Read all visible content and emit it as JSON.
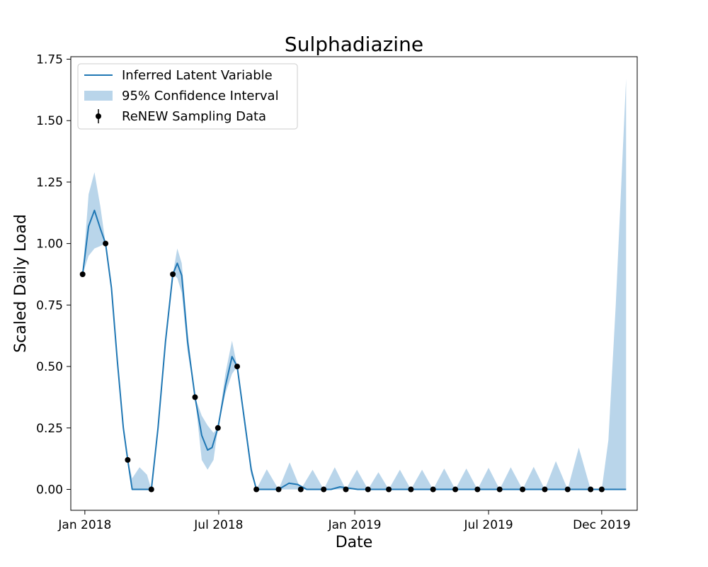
{
  "chart_data": {
    "type": "line",
    "title": "Sulphadiazine",
    "xlabel": "Date",
    "ylabel": "Scaled Daily Load",
    "xlim": [
      "2017-12-13",
      "2020-01-18"
    ],
    "ylim": [
      -0.085,
      1.76
    ],
    "xticks": [
      {
        "date": "2018-01-01",
        "label": "Jan 2018"
      },
      {
        "date": "2018-07-01",
        "label": "Jul 2018"
      },
      {
        "date": "2019-01-01",
        "label": "Jan 2019"
      },
      {
        "date": "2019-07-01",
        "label": "Jul 2019"
      },
      {
        "date": "2019-12-01",
        "label": "Dec 2019"
      }
    ],
    "yticks": [
      {
        "value": 0.0,
        "label": "0.00"
      },
      {
        "value": 0.25,
        "label": "0.25"
      },
      {
        "value": 0.5,
        "label": "0.50"
      },
      {
        "value": 0.75,
        "label": "0.75"
      },
      {
        "value": 1.0,
        "label": "1.00"
      },
      {
        "value": 1.25,
        "label": "1.25"
      },
      {
        "value": 1.5,
        "label": "1.50"
      },
      {
        "value": 1.75,
        "label": "1.75"
      }
    ],
    "grid": false,
    "legend_position": "top-left",
    "colors": {
      "latent": "#1f77b4",
      "ci": "#b9d5ea",
      "data": "#000000"
    },
    "legend": [
      {
        "label": "Inferred Latent Variable",
        "kind": "line"
      },
      {
        "label": "95% Confidence Interval",
        "kind": "band"
      },
      {
        "label": "ReNEW Sampling Data",
        "kind": "errorbar-point"
      }
    ],
    "series": [
      {
        "name": "Inferred Latent Variable",
        "type": "line",
        "points": [
          [
            "2017-12-29",
            0.875
          ],
          [
            "2018-01-06",
            1.07
          ],
          [
            "2018-01-14",
            1.135
          ],
          [
            "2018-01-22",
            1.06
          ],
          [
            "2018-01-29",
            1.0
          ],
          [
            "2018-02-06",
            0.82
          ],
          [
            "2018-02-14",
            0.52
          ],
          [
            "2018-02-22",
            0.25
          ],
          [
            "2018-02-28",
            0.12
          ],
          [
            "2018-03-06",
            0.0
          ],
          [
            "2018-03-16",
            0.0
          ],
          [
            "2018-04-01",
            0.0
          ],
          [
            "2018-04-10",
            0.25
          ],
          [
            "2018-04-20",
            0.6
          ],
          [
            "2018-04-30",
            0.875
          ],
          [
            "2018-05-06",
            0.92
          ],
          [
            "2018-05-12",
            0.87
          ],
          [
            "2018-05-20",
            0.6
          ],
          [
            "2018-05-30",
            0.375
          ],
          [
            "2018-06-08",
            0.22
          ],
          [
            "2018-06-16",
            0.16
          ],
          [
            "2018-06-22",
            0.17
          ],
          [
            "2018-06-30",
            0.25
          ],
          [
            "2018-07-10",
            0.42
          ],
          [
            "2018-07-19",
            0.54
          ],
          [
            "2018-07-26",
            0.5
          ],
          [
            "2018-08-04",
            0.3
          ],
          [
            "2018-08-14",
            0.08
          ],
          [
            "2018-08-21",
            0.0
          ],
          [
            "2018-09-20",
            0.0
          ],
          [
            "2018-10-04",
            0.025
          ],
          [
            "2018-10-16",
            0.02
          ],
          [
            "2018-10-28",
            0.0
          ],
          [
            "2018-11-30",
            0.0
          ],
          [
            "2018-12-12",
            0.01
          ],
          [
            "2018-12-24",
            0.005
          ],
          [
            "2019-01-05",
            0.0
          ],
          [
            "2020-01-03",
            0.0
          ]
        ]
      },
      {
        "name": "95% Confidence Interval",
        "type": "area",
        "points": [
          [
            "2017-12-29",
            0.875,
            0.875
          ],
          [
            "2018-01-06",
            0.95,
            1.2
          ],
          [
            "2018-01-14",
            0.98,
            1.29
          ],
          [
            "2018-01-22",
            0.99,
            1.15
          ],
          [
            "2018-01-29",
            1.0,
            1.0
          ],
          [
            "2018-02-06",
            0.8,
            0.84
          ],
          [
            "2018-02-14",
            0.5,
            0.54
          ],
          [
            "2018-02-22",
            0.23,
            0.27
          ],
          [
            "2018-02-28",
            0.12,
            0.12
          ],
          [
            "2018-03-06",
            0.0,
            0.045
          ],
          [
            "2018-03-16",
            0.0,
            0.09
          ],
          [
            "2018-03-26",
            0.0,
            0.06
          ],
          [
            "2018-04-01",
            0.0,
            0.0
          ],
          [
            "2018-04-10",
            0.24,
            0.27
          ],
          [
            "2018-04-20",
            0.58,
            0.62
          ],
          [
            "2018-04-30",
            0.875,
            0.875
          ],
          [
            "2018-05-06",
            0.86,
            0.98
          ],
          [
            "2018-05-12",
            0.8,
            0.92
          ],
          [
            "2018-05-20",
            0.56,
            0.64
          ],
          [
            "2018-05-30",
            0.375,
            0.375
          ],
          [
            "2018-06-08",
            0.12,
            0.3
          ],
          [
            "2018-06-16",
            0.08,
            0.26
          ],
          [
            "2018-06-24",
            0.12,
            0.23
          ],
          [
            "2018-06-30",
            0.25,
            0.25
          ],
          [
            "2018-07-10",
            0.39,
            0.47
          ],
          [
            "2018-07-19",
            0.47,
            0.605
          ],
          [
            "2018-07-26",
            0.5,
            0.5
          ],
          [
            "2018-08-04",
            0.28,
            0.32
          ],
          [
            "2018-08-14",
            0.06,
            0.1
          ],
          [
            "2018-08-21",
            0.0,
            0.0
          ],
          [
            "2018-09-04",
            0.0,
            0.082
          ],
          [
            "2018-09-20",
            0.0,
            0.0
          ],
          [
            "2018-10-05",
            0.0,
            0.11
          ],
          [
            "2018-10-20",
            0.0,
            0.0
          ],
          [
            "2018-11-05",
            0.0,
            0.08
          ],
          [
            "2018-11-20",
            0.0,
            0.0
          ],
          [
            "2018-12-05",
            0.0,
            0.09
          ],
          [
            "2018-12-20",
            0.0,
            0.0
          ],
          [
            "2019-01-04",
            0.0,
            0.08
          ],
          [
            "2019-01-19",
            0.0,
            0.0
          ],
          [
            "2019-02-02",
            0.0,
            0.07
          ],
          [
            "2019-02-16",
            0.0,
            0.0
          ],
          [
            "2019-03-03",
            0.0,
            0.08
          ],
          [
            "2019-03-18",
            0.0,
            0.0
          ],
          [
            "2019-04-02",
            0.0,
            0.08
          ],
          [
            "2019-04-17",
            0.0,
            0.0
          ],
          [
            "2019-05-02",
            0.0,
            0.085
          ],
          [
            "2019-05-17",
            0.0,
            0.0
          ],
          [
            "2019-06-01",
            0.0,
            0.085
          ],
          [
            "2019-06-16",
            0.0,
            0.0
          ],
          [
            "2019-07-01",
            0.0,
            0.088
          ],
          [
            "2019-07-16",
            0.0,
            0.0
          ],
          [
            "2019-07-31",
            0.0,
            0.09
          ],
          [
            "2019-08-16",
            0.0,
            0.0
          ],
          [
            "2019-08-31",
            0.0,
            0.092
          ],
          [
            "2019-09-15",
            0.0,
            0.0
          ],
          [
            "2019-09-30",
            0.0,
            0.115
          ],
          [
            "2019-10-16",
            0.0,
            0.0
          ],
          [
            "2019-10-31",
            0.0,
            0.17
          ],
          [
            "2019-11-16",
            0.0,
            0.0
          ],
          [
            "2019-12-01",
            0.0,
            0.0
          ],
          [
            "2019-12-10",
            0.0,
            0.2
          ],
          [
            "2019-12-20",
            0.0,
            0.75
          ],
          [
            "2020-01-03",
            0.0,
            1.67
          ]
        ]
      },
      {
        "name": "ReNEW Sampling Data",
        "type": "scatter",
        "points": [
          [
            "2017-12-29",
            0.875
          ],
          [
            "2018-01-29",
            1.0
          ],
          [
            "2018-02-28",
            0.12
          ],
          [
            "2018-04-01",
            0.0
          ],
          [
            "2018-04-30",
            0.875
          ],
          [
            "2018-05-30",
            0.375
          ],
          [
            "2018-06-30",
            0.25
          ],
          [
            "2018-07-26",
            0.5
          ],
          [
            "2018-08-21",
            0.0
          ],
          [
            "2018-09-20",
            0.0
          ],
          [
            "2018-10-20",
            0.0
          ],
          [
            "2018-11-20",
            0.0
          ],
          [
            "2018-12-20",
            0.0
          ],
          [
            "2019-01-19",
            0.0
          ],
          [
            "2019-02-16",
            0.0
          ],
          [
            "2019-03-18",
            0.0
          ],
          [
            "2019-04-17",
            0.0
          ],
          [
            "2019-05-17",
            0.0
          ],
          [
            "2019-06-16",
            0.0
          ],
          [
            "2019-07-16",
            0.0
          ],
          [
            "2019-08-16",
            0.0
          ],
          [
            "2019-09-15",
            0.0
          ],
          [
            "2019-10-16",
            0.0
          ],
          [
            "2019-11-16",
            0.0
          ],
          [
            "2019-12-01",
            0.0
          ]
        ]
      }
    ]
  }
}
